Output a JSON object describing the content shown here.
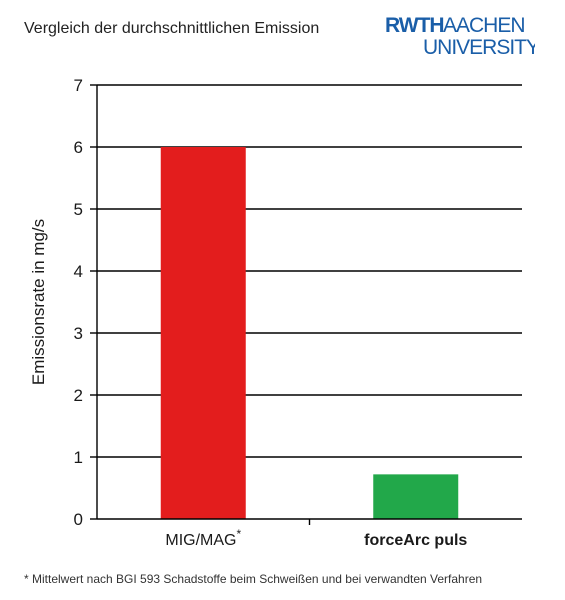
{
  "title": "Vergleich der durchschnittlichen Emission",
  "logo": {
    "line1_bold": "RWTH",
    "line1_light": "AACHEN",
    "line2": "UNIVERSITY",
    "color": "#1a5ea8"
  },
  "footnote": "* Mittelwert nach BGI 593 Schadstoffe beim Schweißen und bei verwandten Verfahren",
  "chart_data": {
    "type": "bar",
    "categories": [
      "MIG/MAG",
      "forceArc puls"
    ],
    "category_markers": [
      "*",
      ""
    ],
    "values": [
      6.0,
      0.72
    ],
    "colors": [
      "#e31d1d",
      "#22a84a"
    ],
    "ylabel": "Emissionsrate in mg/s",
    "xlabel": "",
    "ylim": [
      0,
      7
    ],
    "yticks": [
      0,
      1,
      2,
      3,
      4,
      5,
      6,
      7
    ],
    "grid": true
  }
}
